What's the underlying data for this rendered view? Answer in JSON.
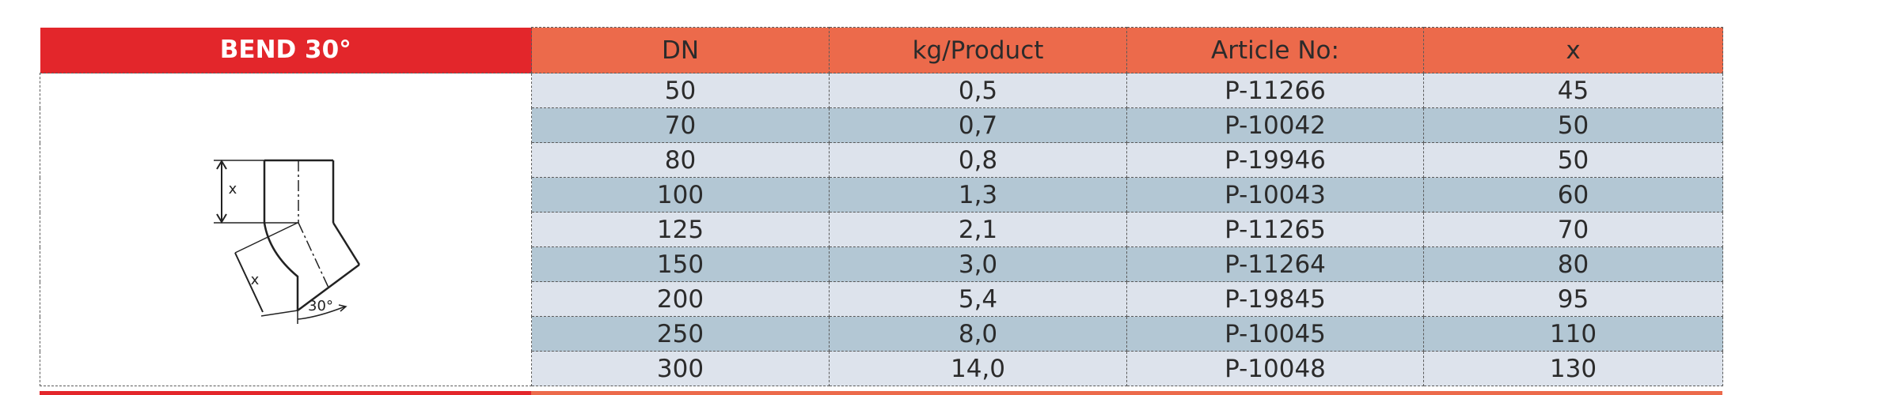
{
  "header": {
    "title": "BEND 30°",
    "columns": [
      "DN",
      "kg/Product",
      "Article No:",
      "x"
    ]
  },
  "table": {
    "rows": [
      [
        "50",
        "0,5",
        "P-11266",
        "45"
      ],
      [
        "70",
        "0,7",
        "P-10042",
        "50"
      ],
      [
        "80",
        "0,8",
        "P-19946",
        "50"
      ],
      [
        "100",
        "1,3",
        "P-10043",
        "60"
      ],
      [
        "125",
        "2,1",
        "P-11265",
        "70"
      ],
      [
        "150",
        "3,0",
        "P-11264",
        "80"
      ],
      [
        "200",
        "5,4",
        "P-19845",
        "95"
      ],
      [
        "250",
        "8,0",
        "P-10045",
        "110"
      ],
      [
        "300",
        "14,0",
        "P-10048",
        "130"
      ]
    ]
  },
  "diagram": {
    "labels": [
      "x",
      "x",
      "30°"
    ]
  }
}
